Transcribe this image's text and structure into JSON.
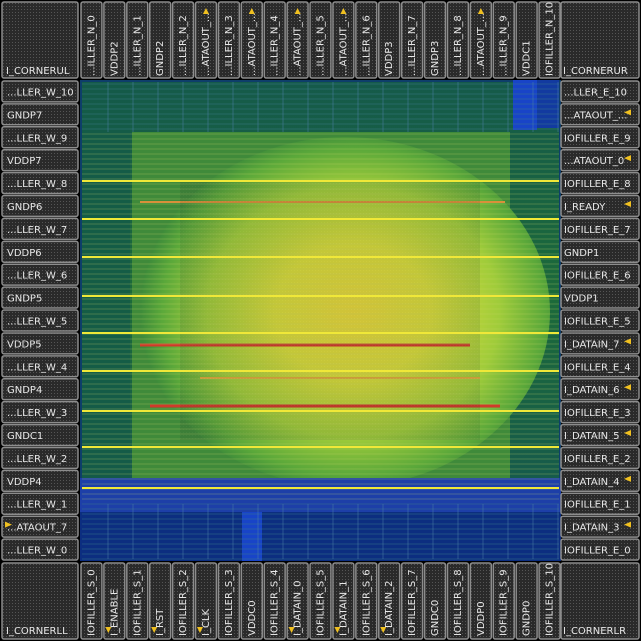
{
  "corners": {
    "top_left": "I_CORNERUL",
    "top_right": "I_CORNERUR",
    "bottom_left": "I_CORNERLL",
    "bottom_right": "I_CORNERLR"
  },
  "pads_top": [
    "...ILLER_N_0",
    "VDDP2",
    "...ILLER_N_1",
    "GNDP2",
    "...ILLER_N_2",
    "...ATAOUT_...",
    "...ILLER_N_3",
    "...ATAOUT_...",
    "...ILLER_N_4",
    "...ATAOUT_...",
    "...ILLER_N_5",
    "...ATAOUT_...",
    "...ILLER_N_6",
    "VDDP3",
    "...ILLER_N_7",
    "GNDP3",
    "...ILLER_N_8",
    "...ATAOUT_...",
    "...ILLER_N_9",
    "VDDC1",
    "IOFILLER_N_10"
  ],
  "pads_bottom": [
    "IOFILLER_S_0",
    "I_ENABLE",
    "IOFILLER_S_1",
    "I_RST",
    "IOFILLER_S_2",
    "I_CLK",
    "IOFILLER_S_3",
    "VDDC0",
    "IOFILLER_S_4",
    "I_DATAIN_0",
    "IOFILLER_S_5",
    "I_DATAIN_1",
    "IOFILLER_S_6",
    "I_DATAIN_2",
    "IOFILLER_S_7",
    "GNDC0",
    "IOFILLER_S_8",
    "VDDP0",
    "IOFILLER_S_9",
    "GNDP0",
    "IOFILLER_S_10"
  ],
  "pads_left": [
    "...LLER_W_10",
    "GNDP7",
    "...LLER_W_9",
    "VDDP7",
    "...LLER_W_8",
    "GNDP6",
    "...LLER_W_7",
    "VDDP6",
    "...LLER_W_6",
    "GNDP5",
    "...LLER_W_5",
    "VDDP5",
    "...LLER_W_4",
    "GNDP4",
    "...LLER_W_3",
    "GNDC1",
    "...LLER_W_2",
    "VDDP4",
    "...LLER_W_1",
    "...ATAOUT_7",
    "...LLER_W_0"
  ],
  "pads_right": [
    "...LLER_E_10",
    "...ATAOUT_...",
    "IOFILLER_E_9",
    "...ATAOUT_0",
    "IOFILLER_E_8",
    "I_READY",
    "IOFILLER_E_7",
    "GNDP1",
    "IOFILLER_E_6",
    "VDDP1",
    "IOFILLER_E_5",
    "I_DATAIN_7",
    "IOFILLER_E_4",
    "I_DATAIN_6",
    "IOFILLER_E_3",
    "I_DATAIN_5",
    "IOFILLER_E_2",
    "I_DATAIN_4",
    "IOFILLER_E_1",
    "I_DATAIN_3",
    "IOFILLER_E_0"
  ],
  "pin_markers": {
    "top": [
      5,
      7,
      9,
      11,
      17
    ],
    "bottom": [
      1,
      3,
      5,
      9,
      11,
      13
    ],
    "left": [
      19
    ],
    "right": [
      1,
      3,
      5,
      11,
      13,
      15,
      17,
      19
    ]
  },
  "colors": {
    "background": "#000000",
    "pad_border": "#8c8c8c",
    "pad_fill": "#2a2a2a",
    "pad_text": "#e8e8e8",
    "core_outer": "#0e3e6a",
    "core_blue": "#1844c8",
    "core_green": "#1c6a3a",
    "heat_green": "#7fbf3a",
    "heat_yellow": "#e8e23a",
    "heat_orange": "#e89a2a",
    "heat_red": "#d8402a",
    "power_rail": "#f0e838",
    "pin_marker": "#f0c020"
  }
}
